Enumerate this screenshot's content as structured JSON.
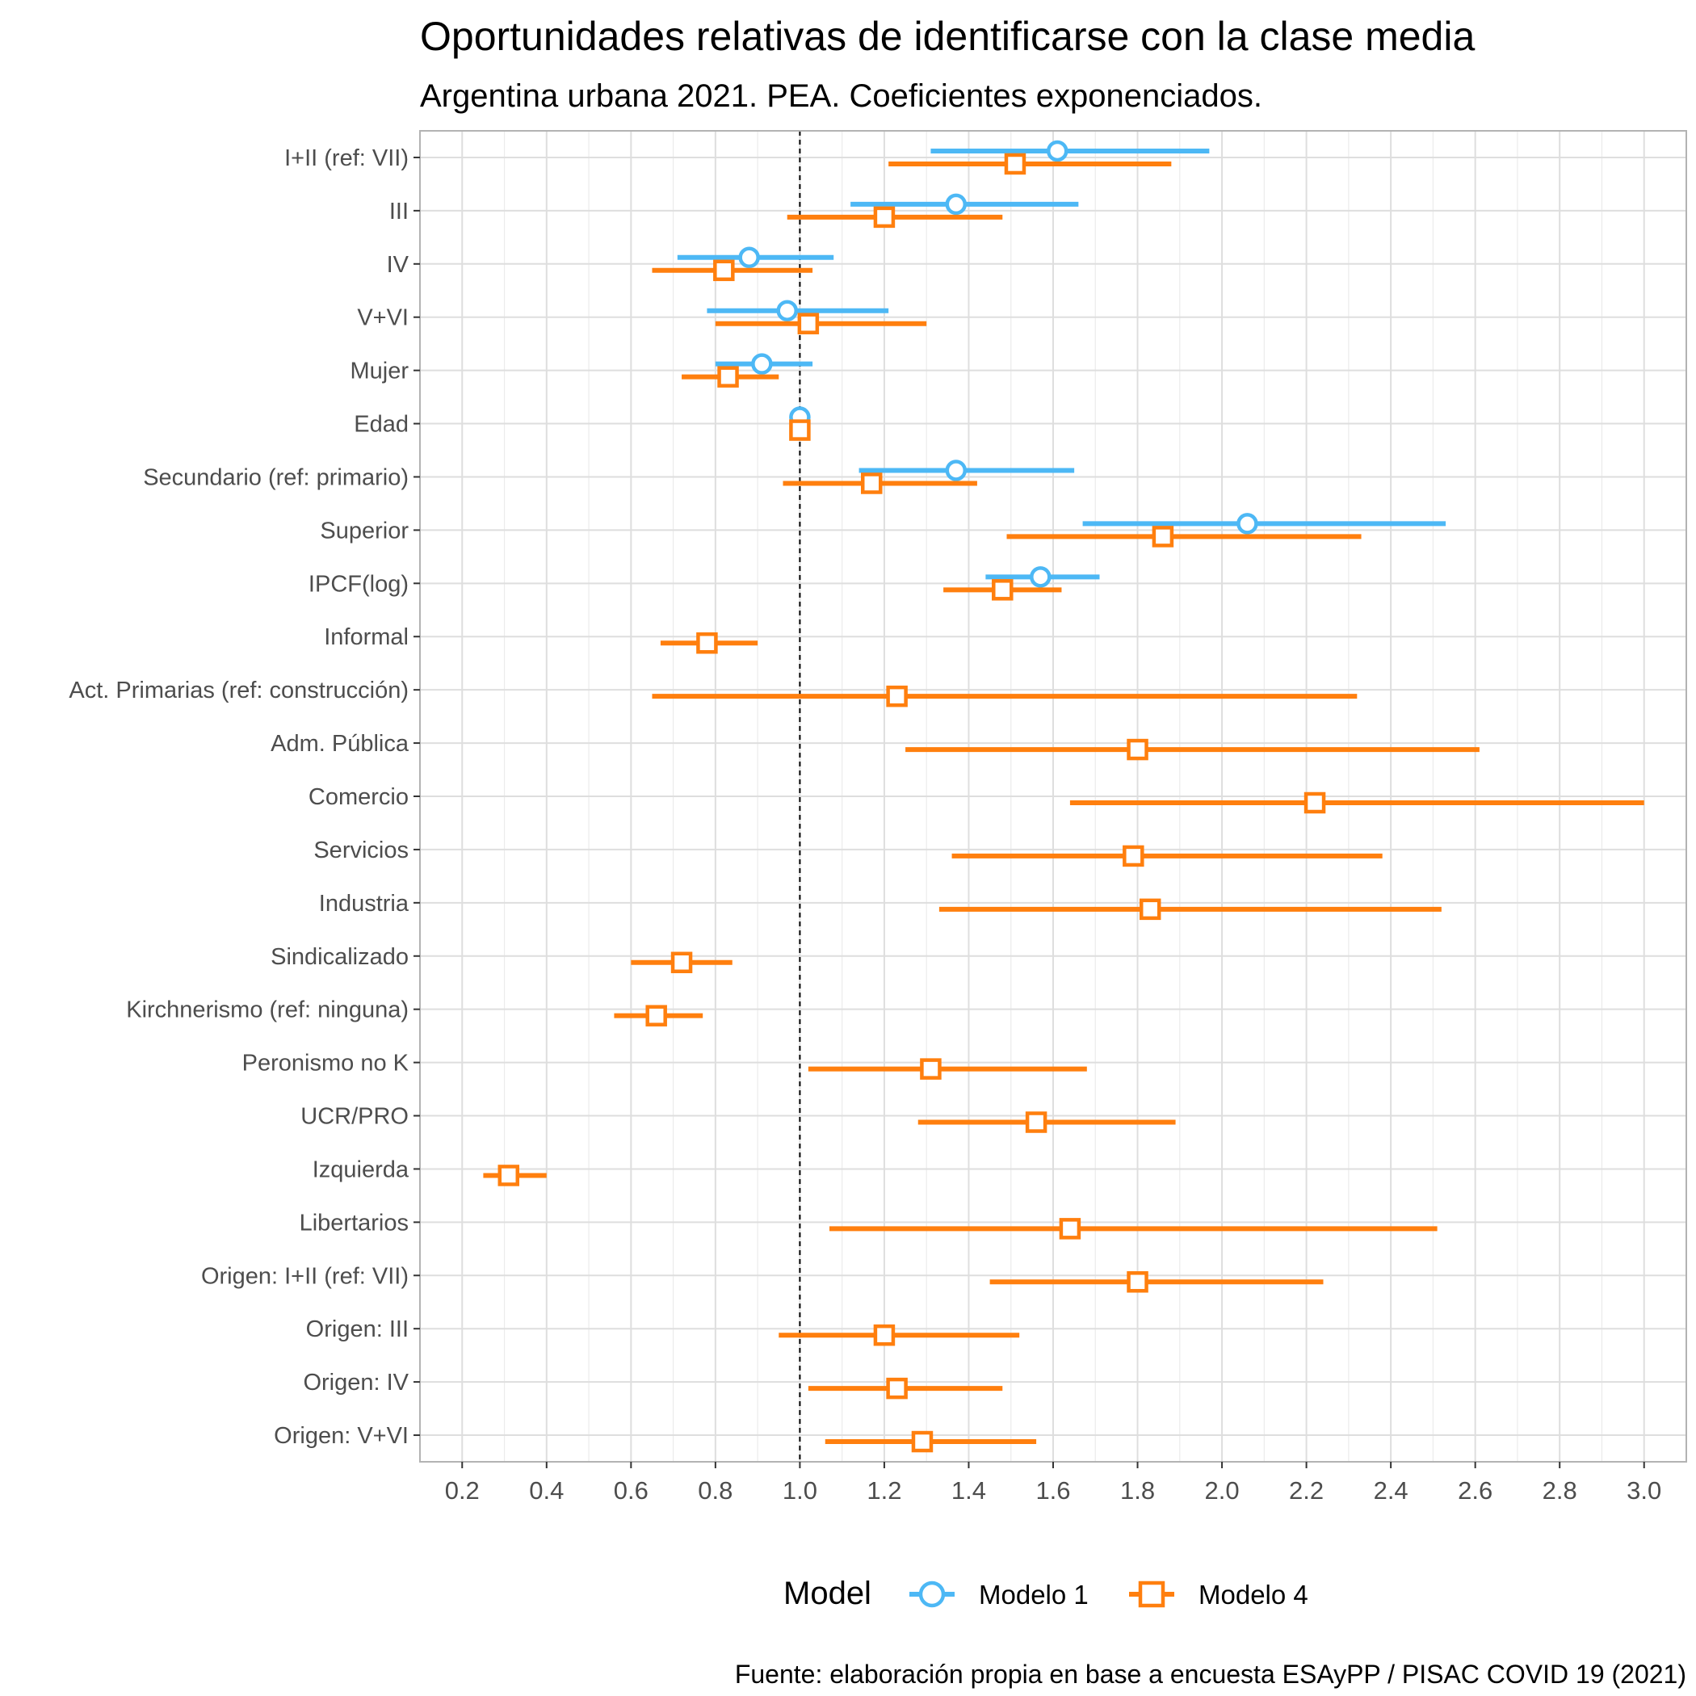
{
  "chart_data": {
    "type": "scatter",
    "title": "Oportunidades relativas de identificarse con la clase media",
    "subtitle": "Argentina urbana 2021. PEA. Coeficientes exponenciados.",
    "caption": "Fuente: elaboración propia en base a encuesta ESAyPP / PISAC COVID 19 (2021)",
    "xlim": [
      0.1,
      3.1
    ],
    "x_ticks": [
      0.2,
      0.4,
      0.6,
      0.8,
      1.0,
      1.2,
      1.4,
      1.6,
      1.8,
      2.0,
      2.2,
      2.4,
      2.6,
      2.8,
      3.0
    ],
    "x_tick_labels": [
      "0.2",
      "0.4",
      "0.6",
      "0.8",
      "1.0",
      "1.2",
      "1.4",
      "1.6",
      "1.8",
      "2.0",
      "2.2",
      "2.4",
      "2.6",
      "2.8",
      "3.0"
    ],
    "reference_line": 1.0,
    "grid": true,
    "legend": {
      "title": "Model",
      "position": "bottom"
    },
    "categories": [
      "I+II (ref: VII)",
      "III",
      "IV",
      "V+VI",
      "Mujer",
      "Edad",
      "Secundario (ref: primario)",
      "Superior",
      "IPCF(log)",
      "Informal",
      "Act. Primarias (ref: construcción)",
      "Adm. Pública",
      "Comercio",
      "Servicios",
      "Industria",
      "Sindicalizado",
      "Kirchnerismo (ref: ninguna)",
      "Peronismo no K",
      "UCR/PRO",
      "Izquierda",
      "Libertarios",
      "Origen: I+II (ref: VII)",
      "Origen: III",
      "Origen: IV",
      "Origen: V+VI"
    ],
    "series": [
      {
        "name": "Modelo 1",
        "color": "#4db8f5",
        "marker": "circle",
        "points": [
          {
            "category": "I+II (ref: VII)",
            "estimate": 1.61,
            "low": 1.31,
            "high": 1.97
          },
          {
            "category": "III",
            "estimate": 1.37,
            "low": 1.12,
            "high": 1.66
          },
          {
            "category": "IV",
            "estimate": 0.88,
            "low": 0.71,
            "high": 1.08
          },
          {
            "category": "V+VI",
            "estimate": 0.97,
            "low": 0.78,
            "high": 1.21
          },
          {
            "category": "Mujer",
            "estimate": 0.91,
            "low": 0.8,
            "high": 1.03
          },
          {
            "category": "Edad",
            "estimate": 1.0,
            "low": 0.995,
            "high": 1.005
          },
          {
            "category": "Secundario (ref: primario)",
            "estimate": 1.37,
            "low": 1.14,
            "high": 1.65
          },
          {
            "category": "Superior",
            "estimate": 2.06,
            "low": 1.67,
            "high": 2.53
          },
          {
            "category": "IPCF(log)",
            "estimate": 1.57,
            "low": 1.44,
            "high": 1.71
          }
        ]
      },
      {
        "name": "Modelo 4",
        "color": "#ff7f0e",
        "marker": "square",
        "points": [
          {
            "category": "I+II (ref: VII)",
            "estimate": 1.51,
            "low": 1.21,
            "high": 1.88
          },
          {
            "category": "III",
            "estimate": 1.2,
            "low": 0.97,
            "high": 1.48
          },
          {
            "category": "IV",
            "estimate": 0.82,
            "low": 0.65,
            "high": 1.03
          },
          {
            "category": "V+VI",
            "estimate": 1.02,
            "low": 0.8,
            "high": 1.3
          },
          {
            "category": "Mujer",
            "estimate": 0.83,
            "low": 0.72,
            "high": 0.95
          },
          {
            "category": "Edad",
            "estimate": 1.0,
            "low": 0.995,
            "high": 1.005
          },
          {
            "category": "Secundario (ref: primario)",
            "estimate": 1.17,
            "low": 0.96,
            "high": 1.42
          },
          {
            "category": "Superior",
            "estimate": 1.86,
            "low": 1.49,
            "high": 2.33
          },
          {
            "category": "IPCF(log)",
            "estimate": 1.48,
            "low": 1.34,
            "high": 1.62
          },
          {
            "category": "Informal",
            "estimate": 0.78,
            "low": 0.67,
            "high": 0.9
          },
          {
            "category": "Act. Primarias (ref: construcción)",
            "estimate": 1.23,
            "low": 0.65,
            "high": 2.32
          },
          {
            "category": "Adm. Pública",
            "estimate": 1.8,
            "low": 1.25,
            "high": 2.61
          },
          {
            "category": "Comercio",
            "estimate": 2.22,
            "low": 1.64,
            "high": 3.0
          },
          {
            "category": "Servicios",
            "estimate": 1.79,
            "low": 1.36,
            "high": 2.38
          },
          {
            "category": "Industria",
            "estimate": 1.83,
            "low": 1.33,
            "high": 2.52
          },
          {
            "category": "Sindicalizado",
            "estimate": 0.72,
            "low": 0.6,
            "high": 0.84
          },
          {
            "category": "Kirchnerismo (ref: ninguna)",
            "estimate": 0.66,
            "low": 0.56,
            "high": 0.77
          },
          {
            "category": "Peronismo no K",
            "estimate": 1.31,
            "low": 1.02,
            "high": 1.68
          },
          {
            "category": "UCR/PRO",
            "estimate": 1.56,
            "low": 1.28,
            "high": 1.89
          },
          {
            "category": "Izquierda",
            "estimate": 0.31,
            "low": 0.25,
            "high": 0.4
          },
          {
            "category": "Libertarios",
            "estimate": 1.64,
            "low": 1.07,
            "high": 2.51
          },
          {
            "category": "Origen: I+II (ref: VII)",
            "estimate": 1.8,
            "low": 1.45,
            "high": 2.24
          },
          {
            "category": "Origen: III",
            "estimate": 1.2,
            "low": 0.95,
            "high": 1.52
          },
          {
            "category": "Origen: IV",
            "estimate": 1.23,
            "low": 1.02,
            "high": 1.48
          },
          {
            "category": "Origen: V+VI",
            "estimate": 1.29,
            "low": 1.06,
            "high": 1.56
          }
        ]
      }
    ]
  }
}
